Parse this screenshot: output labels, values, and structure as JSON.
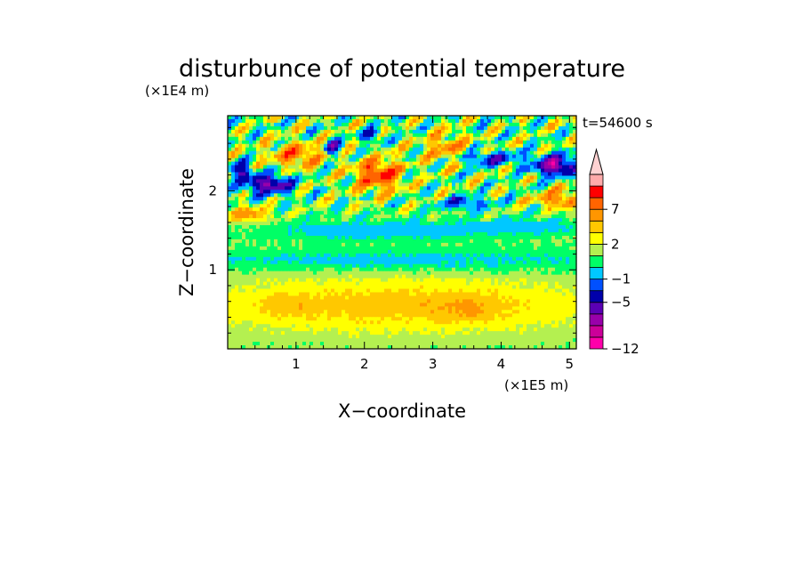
{
  "chart_data": {
    "type": "heatmap",
    "title": "disturbunce of potential temperature",
    "xlabel": "X−coordinate",
    "ylabel": "Z−coordinate",
    "x_unit": "(×1E5 m)",
    "y_unit": "(×1E4 m)",
    "time_label": "t=54600 s",
    "xlim": [
      0,
      5.1
    ],
    "ylim": [
      0,
      2.95
    ],
    "x_ticks": [
      1,
      2,
      3,
      4,
      5
    ],
    "y_ticks": [
      1,
      2
    ],
    "colorbar": {
      "levels": [
        -12,
        -11,
        -9,
        -7,
        -5,
        -3,
        -1,
        0,
        1,
        2,
        3,
        5,
        7,
        9,
        11
      ],
      "tick_labels": [
        "7",
        "2",
        "−1",
        "−5",
        "−12"
      ],
      "colors": [
        "#ff00aa",
        "#cc0099",
        "#9900aa",
        "#5a00b4",
        "#0000aa",
        "#0050ff",
        "#00c8ff",
        "#00ff66",
        "#b4f050",
        "#ffff00",
        "#ffc800",
        "#ff9600",
        "#ff6400",
        "#ff0000",
        "#ffaaaa",
        "#ffd2d2"
      ],
      "extend": "max"
    },
    "structure": [
      {
        "z_range": [
          0.0,
          0.2
        ],
        "typical_value": 1.5,
        "description_level": "yellow-green"
      },
      {
        "z_range": [
          0.2,
          0.9
        ],
        "typical_value": 2.5,
        "description_level": "yellow-orange"
      },
      {
        "z_range": [
          0.9,
          1.4
        ],
        "typical_value": 0.5,
        "description_level": "green"
      },
      {
        "z_range": [
          1.4,
          1.6
        ],
        "typical_value": -0.8,
        "description_level": "cyan"
      },
      {
        "z_range": [
          1.6,
          2.95
        ],
        "typical_value": 0,
        "description_level": "wave band: orange/red positive, blue negative"
      }
    ],
    "extremes": {
      "min_approx": -12,
      "max_approx": 9
    }
  }
}
